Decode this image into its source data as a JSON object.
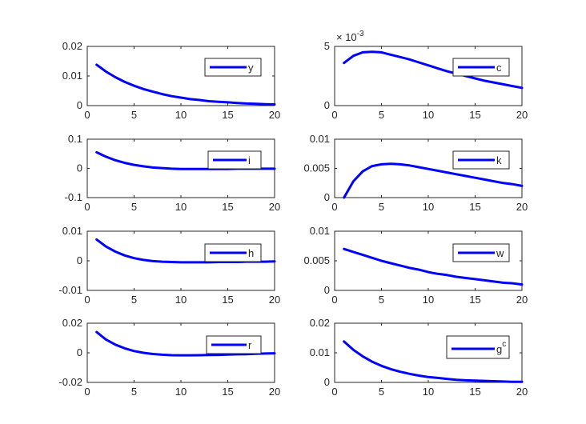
{
  "colors": {
    "series": "#0000ff",
    "axis": "#262626",
    "background": "#ffffff"
  },
  "chart_data": [
    {
      "type": "line",
      "legend": "y",
      "legend_sup": "",
      "legend_position": "right",
      "xlim": [
        0,
        20
      ],
      "xticks": [
        "0",
        "5",
        "10",
        "15",
        "20"
      ],
      "ylim": [
        0,
        0.02
      ],
      "yticks": [
        {
          "v": 0,
          "t": "0"
        },
        {
          "v": 0.01,
          "t": "0.01"
        },
        {
          "v": 0.02,
          "t": "0.02"
        }
      ],
      "exponent": "",
      "x": [
        1,
        2,
        3,
        4,
        5,
        6,
        7,
        8,
        9,
        10,
        11,
        12,
        13,
        14,
        15,
        16,
        17,
        18,
        19,
        20
      ],
      "values": [
        0.0138,
        0.0115,
        0.0096,
        0.008,
        0.0067,
        0.0056,
        0.0047,
        0.0039,
        0.0032,
        0.0027,
        0.0022,
        0.0019,
        0.0015,
        0.0013,
        0.0011,
        0.0009,
        0.0007,
        0.0006,
        0.0005,
        0.0004
      ]
    },
    {
      "type": "line",
      "legend": "c",
      "legend_sup": "",
      "legend_position": "right",
      "xlim": [
        0,
        20
      ],
      "xticks": [
        "0",
        "5",
        "10",
        "15",
        "20"
      ],
      "ylim": [
        0,
        0.005
      ],
      "yticks": [
        {
          "v": 0,
          "t": "0"
        },
        {
          "v": 0.005,
          "t": "5"
        }
      ],
      "exponent": "× 10",
      "exponent_power": "-3",
      "x": [
        1,
        2,
        3,
        4,
        5,
        6,
        7,
        8,
        9,
        10,
        11,
        12,
        13,
        14,
        15,
        16,
        17,
        18,
        19,
        20
      ],
      "values": [
        0.0036,
        0.0042,
        0.0045,
        0.00455,
        0.0045,
        0.0043,
        0.0041,
        0.0039,
        0.00365,
        0.0034,
        0.00315,
        0.0029,
        0.0027,
        0.0025,
        0.0023,
        0.0021,
        0.00195,
        0.0018,
        0.00165,
        0.0015
      ]
    },
    {
      "type": "line",
      "legend": "i",
      "legend_sup": "",
      "legend_position": "right",
      "xlim": [
        0,
        20
      ],
      "xticks": [
        "0",
        "5",
        "10",
        "15",
        "20"
      ],
      "ylim": [
        -0.1,
        0.1
      ],
      "yticks": [
        {
          "v": -0.1,
          "t": "-0.1"
        },
        {
          "v": 0,
          "t": "0"
        },
        {
          "v": 0.1,
          "t": "0.1"
        }
      ],
      "exponent": "",
      "x": [
        1,
        2,
        3,
        4,
        5,
        6,
        7,
        8,
        9,
        10,
        11,
        12,
        13,
        14,
        15,
        16,
        17,
        18,
        19,
        20
      ],
      "values": [
        0.055,
        0.04,
        0.028,
        0.019,
        0.012,
        0.007,
        0.003,
        0.001,
        -0.001,
        -0.002,
        -0.002,
        -0.002,
        -0.002,
        -0.002,
        -0.002,
        -0.001,
        -0.001,
        -0.001,
        -0.001,
        -0.001
      ]
    },
    {
      "type": "line",
      "legend": "k",
      "legend_sup": "",
      "legend_position": "right",
      "xlim": [
        0,
        20
      ],
      "xticks": [
        "0",
        "5",
        "10",
        "15",
        "20"
      ],
      "ylim": [
        0,
        0.01
      ],
      "yticks": [
        {
          "v": 0,
          "t": "0"
        },
        {
          "v": 0.005,
          "t": "0.005"
        },
        {
          "v": 0.01,
          "t": "0.01"
        }
      ],
      "exponent": "",
      "x": [
        1,
        2,
        3,
        4,
        5,
        6,
        7,
        8,
        9,
        10,
        11,
        12,
        13,
        14,
        15,
        16,
        17,
        18,
        19,
        20
      ],
      "values": [
        0.0,
        0.0028,
        0.0045,
        0.0054,
        0.0057,
        0.0058,
        0.0057,
        0.0055,
        0.0052,
        0.0049,
        0.0046,
        0.0043,
        0.004,
        0.0037,
        0.0034,
        0.0031,
        0.0028,
        0.0025,
        0.0023,
        0.002
      ]
    },
    {
      "type": "line",
      "legend": "h",
      "legend_sup": "",
      "legend_position": "right",
      "xlim": [
        0,
        20
      ],
      "xticks": [
        "0",
        "5",
        "10",
        "15",
        "20"
      ],
      "ylim": [
        -0.01,
        0.01
      ],
      "yticks": [
        {
          "v": -0.01,
          "t": "-0.01"
        },
        {
          "v": 0,
          "t": "0"
        },
        {
          "v": 0.01,
          "t": "0.01"
        }
      ],
      "exponent": "",
      "x": [
        1,
        2,
        3,
        4,
        5,
        6,
        7,
        8,
        9,
        10,
        11,
        12,
        13,
        14,
        15,
        16,
        17,
        18,
        19,
        20
      ],
      "values": [
        0.0072,
        0.0048,
        0.0031,
        0.0018,
        0.0009,
        0.0003,
        -0.0001,
        -0.0003,
        -0.0004,
        -0.0005,
        -0.0005,
        -0.0005,
        -0.0005,
        -0.0004,
        -0.0004,
        -0.0004,
        -0.0003,
        -0.0003,
        -0.0003,
        -0.0002
      ]
    },
    {
      "type": "line",
      "legend": "w",
      "legend_sup": "",
      "legend_position": "right",
      "xlim": [
        0,
        20
      ],
      "xticks": [
        "0",
        "5",
        "10",
        "15",
        "20"
      ],
      "ylim": [
        0,
        0.01
      ],
      "yticks": [
        {
          "v": 0,
          "t": "0"
        },
        {
          "v": 0.005,
          "t": "0.005"
        },
        {
          "v": 0.01,
          "t": "0.01"
        }
      ],
      "exponent": "",
      "x": [
        1,
        2,
        3,
        4,
        5,
        6,
        7,
        8,
        9,
        10,
        11,
        12,
        13,
        14,
        15,
        16,
        17,
        18,
        19,
        20
      ],
      "values": [
        0.007,
        0.0065,
        0.006,
        0.0055,
        0.005,
        0.0046,
        0.0042,
        0.0038,
        0.0035,
        0.0031,
        0.0028,
        0.0026,
        0.0023,
        0.0021,
        0.0019,
        0.0017,
        0.0015,
        0.0013,
        0.0012,
        0.001
      ]
    },
    {
      "type": "line",
      "legend": "r",
      "legend_sup": "",
      "legend_position": "right",
      "xlim": [
        0,
        20
      ],
      "xticks": [
        "0",
        "5",
        "10",
        "15",
        "20"
      ],
      "ylim": [
        -0.02,
        0.02
      ],
      "yticks": [
        {
          "v": -0.02,
          "t": "-0.02"
        },
        {
          "v": 0,
          "t": "0"
        },
        {
          "v": 0.02,
          "t": "0.02"
        }
      ],
      "exponent": "",
      "x": [
        1,
        2,
        3,
        4,
        5,
        6,
        7,
        8,
        9,
        10,
        11,
        12,
        13,
        14,
        15,
        16,
        17,
        18,
        19,
        20
      ],
      "values": [
        0.014,
        0.009,
        0.0055,
        0.003,
        0.0012,
        0.0,
        -0.0008,
        -0.0013,
        -0.0016,
        -0.0017,
        -0.0017,
        -0.0016,
        -0.0015,
        -0.0014,
        -0.0012,
        -0.001,
        -0.0009,
        -0.0007,
        -0.0005,
        -0.0003
      ]
    },
    {
      "type": "line",
      "legend": "g",
      "legend_sup": "c",
      "legend_position": "right",
      "xlim": [
        0,
        20
      ],
      "xticks": [
        "0",
        "5",
        "10",
        "15",
        "20"
      ],
      "ylim": [
        0,
        0.02
      ],
      "yticks": [
        {
          "v": 0,
          "t": "0"
        },
        {
          "v": 0.01,
          "t": "0.01"
        },
        {
          "v": 0.02,
          "t": "0.02"
        }
      ],
      "exponent": "",
      "x": [
        1,
        2,
        3,
        4,
        5,
        6,
        7,
        8,
        9,
        10,
        11,
        12,
        13,
        14,
        15,
        16,
        17,
        18,
        19,
        20
      ],
      "values": [
        0.0138,
        0.011,
        0.0088,
        0.007,
        0.0056,
        0.0045,
        0.0036,
        0.0029,
        0.0023,
        0.0018,
        0.0015,
        0.0012,
        0.0009,
        0.0007,
        0.0006,
        0.0005,
        0.0004,
        0.0003,
        0.0002,
        0.0002
      ]
    }
  ]
}
